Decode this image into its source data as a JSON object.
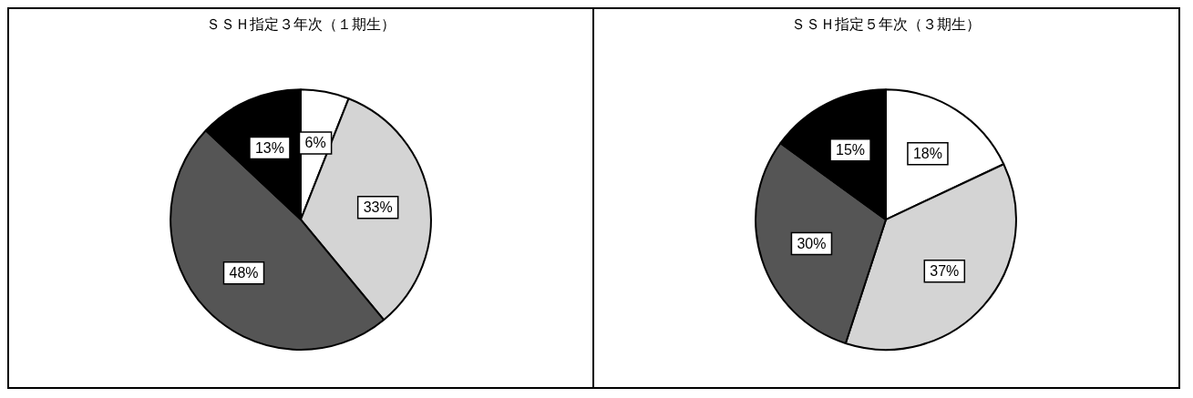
{
  "chart_data": [
    {
      "type": "pie",
      "title": "ＳＳＨ指定３年次（１期生）",
      "categories": [
        null,
        null,
        null,
        null
      ],
      "values": [
        6,
        33,
        48,
        13
      ],
      "colors": [
        "#ffffff",
        "#d4d4d4",
        "#555555",
        "#000000"
      ],
      "value_labels": [
        "6%",
        "33%",
        "48%",
        "13%"
      ],
      "legend": false
    },
    {
      "type": "pie",
      "title": "ＳＳＨ指定５年次（３期生）",
      "categories": [
        null,
        null,
        null,
        null
      ],
      "values": [
        18,
        37,
        30,
        15
      ],
      "colors": [
        "#ffffff",
        "#d4d4d4",
        "#555555",
        "#000000"
      ],
      "value_labels": [
        "18%",
        "37%",
        "30%",
        "15%"
      ],
      "legend": false
    }
  ]
}
